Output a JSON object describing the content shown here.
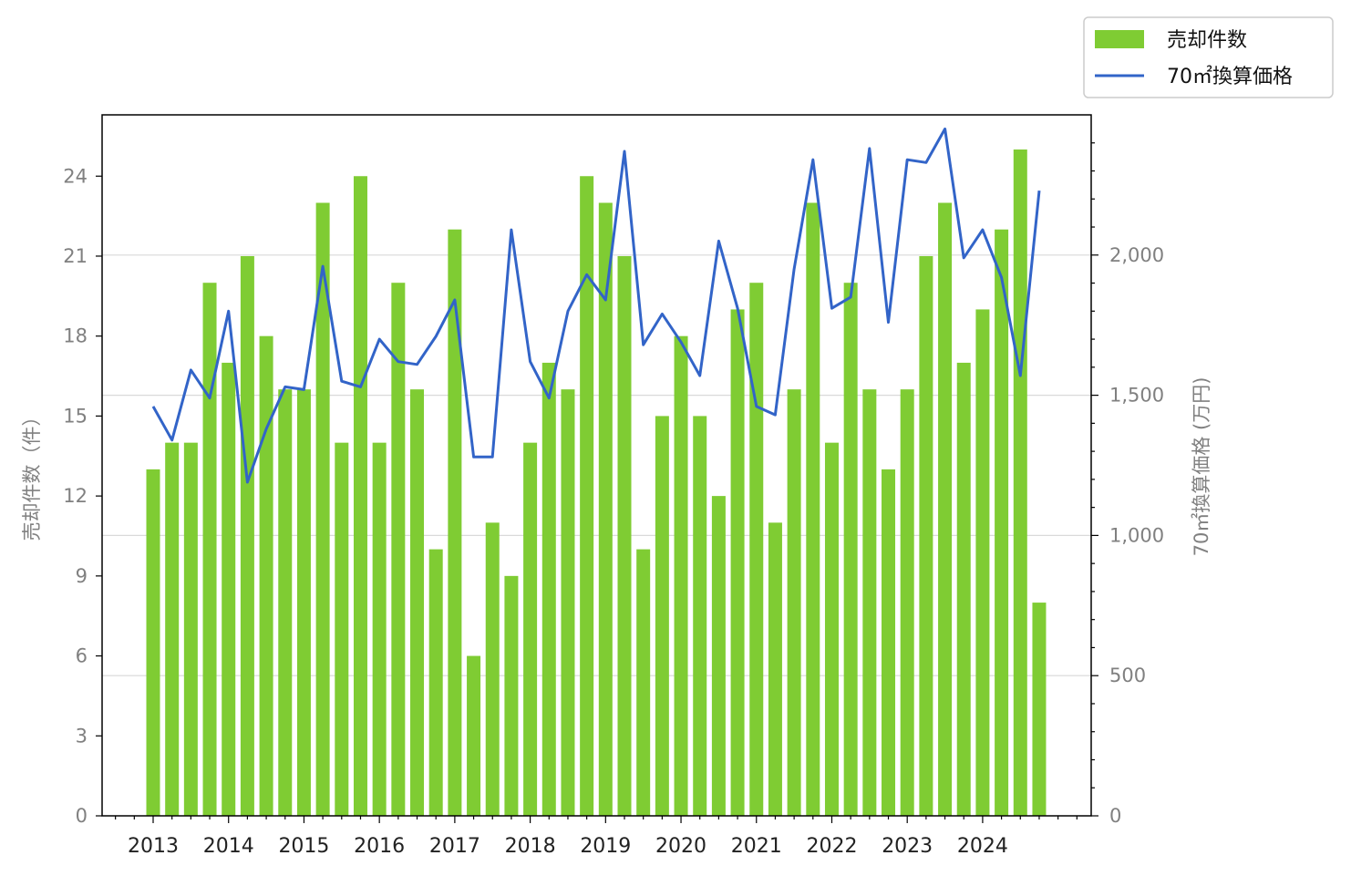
{
  "chart_data": {
    "type": "bar+line",
    "x": [
      "2013Q1",
      "2013Q2",
      "2013Q3",
      "2013Q4",
      "2014Q1",
      "2014Q2",
      "2014Q3",
      "2014Q4",
      "2015Q1",
      "2015Q2",
      "2015Q3",
      "2015Q4",
      "2016Q1",
      "2016Q2",
      "2016Q3",
      "2016Q4",
      "2017Q1",
      "2017Q2",
      "2017Q3",
      "2017Q4",
      "2018Q1",
      "2018Q2",
      "2018Q3",
      "2018Q4",
      "2019Q1",
      "2019Q2",
      "2019Q3",
      "2019Q4",
      "2020Q1",
      "2020Q2",
      "2020Q3",
      "2020Q4",
      "2021Q1",
      "2021Q2",
      "2021Q3",
      "2021Q4",
      "2022Q1",
      "2022Q2",
      "2022Q3",
      "2022Q4",
      "2023Q1",
      "2023Q2",
      "2023Q3",
      "2023Q4",
      "2024Q1",
      "2024Q2",
      "2024Q3",
      "2024Q4"
    ],
    "x_tick_labels": [
      "2013",
      "2014",
      "2015",
      "2016",
      "2017",
      "2018",
      "2019",
      "2020",
      "2021",
      "2022",
      "2023",
      "2024"
    ],
    "series": [
      {
        "name": "売却件数",
        "kind": "bar",
        "axis": "left",
        "color": "#7fcc33",
        "values": [
          13,
          14,
          14,
          20,
          17,
          21,
          18,
          16,
          16,
          23,
          14,
          24,
          14,
          20,
          16,
          10,
          22,
          6,
          11,
          9,
          14,
          17,
          16,
          24,
          23,
          21,
          10,
          15,
          18,
          15,
          12,
          19,
          20,
          11,
          16,
          23,
          14,
          20,
          16,
          13,
          16,
          21,
          23,
          17,
          19,
          22,
          25,
          8
        ]
      },
      {
        "name": "70㎡換算価格",
        "kind": "line",
        "axis": "right",
        "color": "#3264c8",
        "values": [
          1460,
          1340,
          1590,
          1490,
          1800,
          1190,
          1380,
          1530,
          1520,
          1960,
          1550,
          1530,
          1700,
          1620,
          1610,
          1710,
          1840,
          1280,
          1280,
          2090,
          1620,
          1490,
          1800,
          1930,
          1840,
          2370,
          1680,
          1790,
          1690,
          1570,
          2050,
          1810,
          1460,
          1430,
          1950,
          2340,
          1810,
          1850,
          2380,
          1760,
          2340,
          2330,
          2450,
          1990,
          2090,
          1920,
          1570,
          2230
        ]
      }
    ],
    "ylabel_left": "売却件数（件）",
    "ylabel_right": "70㎡換算価格 (万円)",
    "ylim_left": [
      0,
      26.3
    ],
    "ylim_right": [
      0,
      2500
    ],
    "left_ticks": [
      "0",
      "3",
      "6",
      "9",
      "12",
      "15",
      "18",
      "21",
      "24"
    ],
    "right_ticks": [
      "0",
      "500",
      "1,000",
      "1,500",
      "2,000"
    ],
    "legend": {
      "position": "top-right, outside plot",
      "items": [
        {
          "label": "売却件数"
        },
        {
          "label": "70㎡換算価格"
        }
      ]
    },
    "grid": "horizontal, right axis only"
  }
}
